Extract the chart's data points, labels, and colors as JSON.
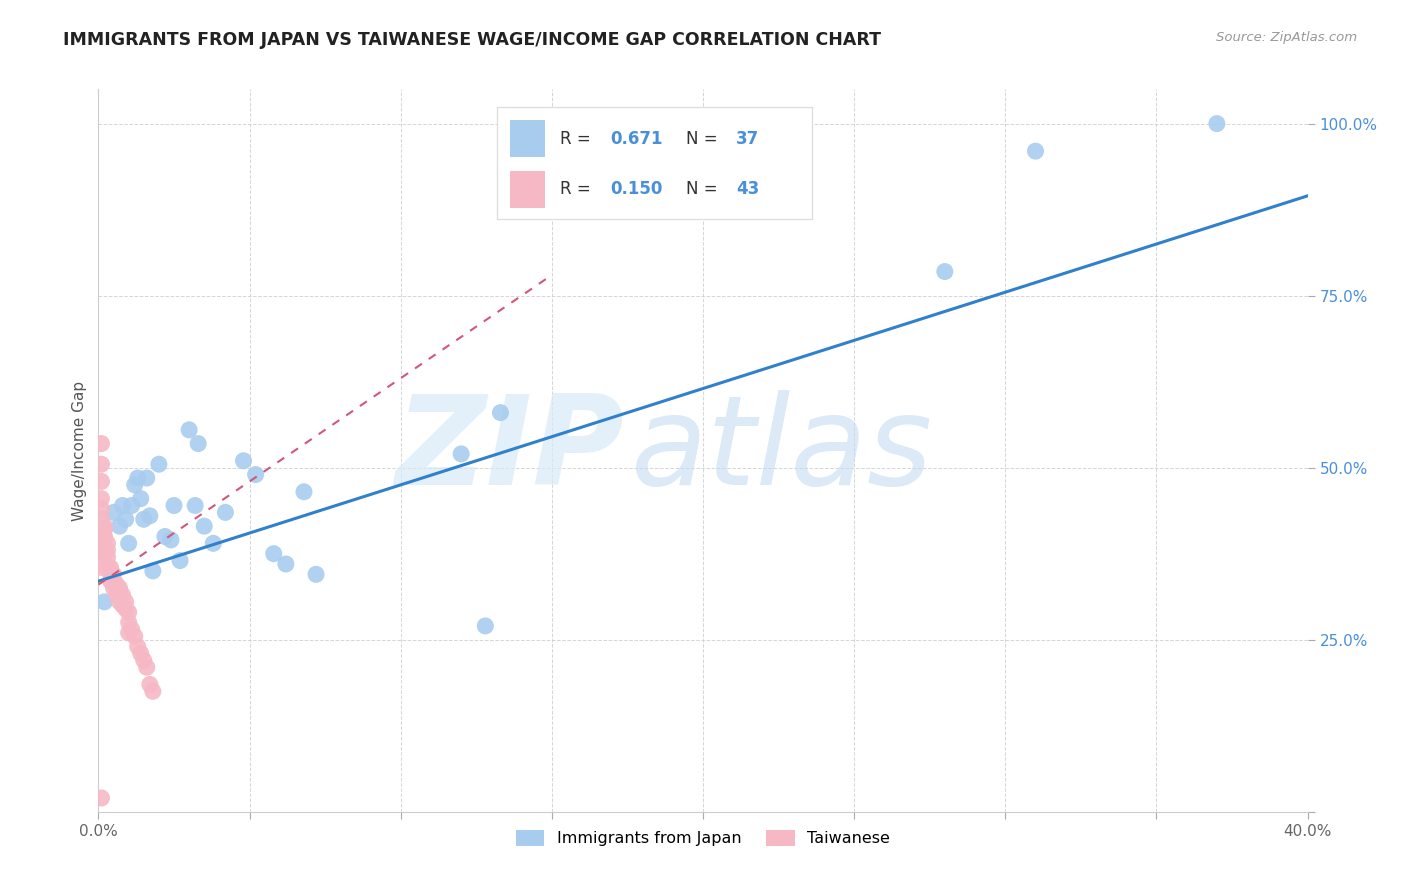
{
  "title": "IMMIGRANTS FROM JAPAN VS TAIWANESE WAGE/INCOME GAP CORRELATION CHART",
  "source": "Source: ZipAtlas.com",
  "ylabel": "Wage/Income Gap",
  "xlim": [
    0.0,
    0.4
  ],
  "ylim": [
    0.0,
    1.05
  ],
  "x_ticks": [
    0.0,
    0.05,
    0.1,
    0.15,
    0.2,
    0.25,
    0.3,
    0.35,
    0.4
  ],
  "y_ticks": [
    0.0,
    0.25,
    0.5,
    0.75,
    1.0
  ],
  "blue_color": "#a8ccee",
  "pink_color": "#f5b8c4",
  "blue_line_color": "#3080cc",
  "pink_line_color": "#d05878",
  "label1": "Immigrants from Japan",
  "label2": "Taiwanese",
  "watermark_zip": "ZIP",
  "watermark_atlas": "atlas",
  "blue_line_x0": 0.0,
  "blue_line_y0": 0.335,
  "blue_line_x1": 0.4,
  "blue_line_y1": 0.895,
  "pink_line_x0": 0.0,
  "pink_line_y0": 0.33,
  "pink_line_x1": 0.15,
  "pink_line_y1": 0.78,
  "japan_x": [
    0.002,
    0.005,
    0.007,
    0.008,
    0.009,
    0.01,
    0.011,
    0.012,
    0.013,
    0.014,
    0.015,
    0.016,
    0.017,
    0.018,
    0.02,
    0.022,
    0.024,
    0.025,
    0.027,
    0.03,
    0.032,
    0.033,
    0.035,
    0.038,
    0.042,
    0.048,
    0.052,
    0.058,
    0.062,
    0.068,
    0.072,
    0.12,
    0.128,
    0.133,
    0.28,
    0.31,
    0.37
  ],
  "japan_y": [
    0.305,
    0.435,
    0.415,
    0.445,
    0.425,
    0.39,
    0.445,
    0.475,
    0.485,
    0.455,
    0.425,
    0.485,
    0.43,
    0.35,
    0.505,
    0.4,
    0.395,
    0.445,
    0.365,
    0.555,
    0.445,
    0.535,
    0.415,
    0.39,
    0.435,
    0.51,
    0.49,
    0.375,
    0.36,
    0.465,
    0.345,
    0.52,
    0.27,
    0.58,
    0.785,
    0.96,
    1.0
  ],
  "taiwan_x": [
    0.001,
    0.001,
    0.001,
    0.001,
    0.001,
    0.001,
    0.001,
    0.002,
    0.002,
    0.002,
    0.002,
    0.002,
    0.003,
    0.003,
    0.003,
    0.003,
    0.004,
    0.004,
    0.004,
    0.005,
    0.005,
    0.005,
    0.006,
    0.006,
    0.007,
    0.007,
    0.008,
    0.008,
    0.009,
    0.009,
    0.01,
    0.01,
    0.01,
    0.011,
    0.012,
    0.013,
    0.014,
    0.015,
    0.016,
    0.017,
    0.018,
    0.001,
    0.001
  ],
  "taiwan_y": [
    0.535,
    0.505,
    0.48,
    0.455,
    0.44,
    0.425,
    0.4,
    0.415,
    0.41,
    0.4,
    0.385,
    0.375,
    0.39,
    0.38,
    0.37,
    0.355,
    0.355,
    0.345,
    0.335,
    0.345,
    0.335,
    0.325,
    0.33,
    0.315,
    0.325,
    0.305,
    0.315,
    0.3,
    0.305,
    0.295,
    0.29,
    0.275,
    0.26,
    0.265,
    0.255,
    0.24,
    0.23,
    0.22,
    0.21,
    0.185,
    0.175,
    0.02,
    0.355
  ]
}
